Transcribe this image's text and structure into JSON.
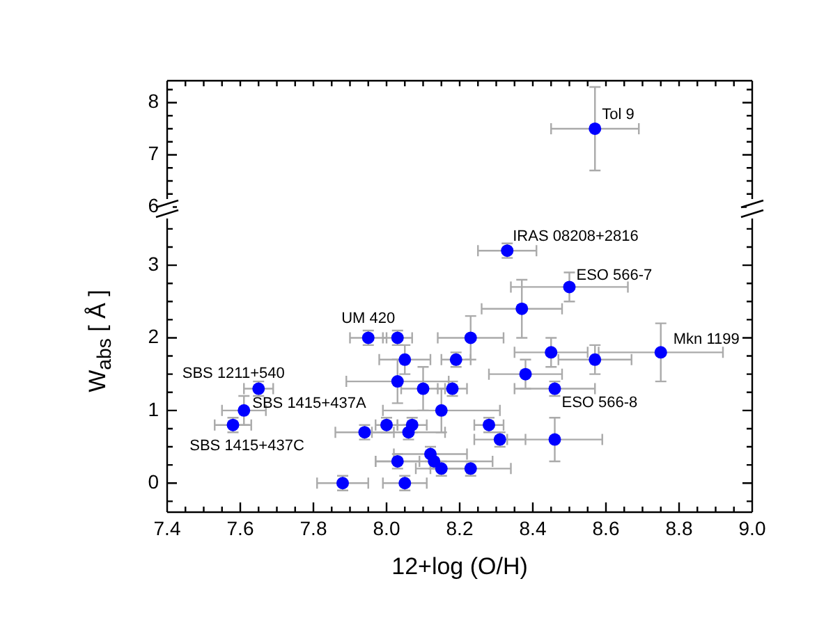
{
  "chart_data": [
    {
      "type": "scatter",
      "xlim": [
        7.4,
        9.0
      ],
      "ylim": [
        5.95,
        8.42
      ],
      "tick_labels": "y",
      "grid": false,
      "legend": false,
      "marker": "circle",
      "xticks": [
        {
          "value": 7.4,
          "label": null
        },
        {
          "value": 7.45,
          "label": null
        },
        {
          "value": 7.5,
          "label": null
        },
        {
          "value": 7.55,
          "label": null
        },
        {
          "value": 7.6,
          "label": null
        },
        {
          "value": 7.65,
          "label": null
        },
        {
          "value": 7.7,
          "label": null
        },
        {
          "value": 7.75,
          "label": null
        },
        {
          "value": 7.8,
          "label": null
        },
        {
          "value": 7.85,
          "label": null
        },
        {
          "value": 7.9,
          "label": null
        },
        {
          "value": 7.95,
          "label": null
        },
        {
          "value": 8.0,
          "label": null
        },
        {
          "value": 8.05,
          "label": null
        },
        {
          "value": 8.1,
          "label": null
        },
        {
          "value": 8.15,
          "label": null
        },
        {
          "value": 8.2,
          "label": null
        },
        {
          "value": 8.25,
          "label": null
        },
        {
          "value": 8.3,
          "label": null
        },
        {
          "value": 8.35,
          "label": null
        },
        {
          "value": 8.4,
          "label": null
        },
        {
          "value": 8.45,
          "label": null
        },
        {
          "value": 8.5,
          "label": null
        },
        {
          "value": 8.55,
          "label": null
        },
        {
          "value": 8.6,
          "label": null
        },
        {
          "value": 8.65,
          "label": null
        },
        {
          "value": 8.7,
          "label": null
        },
        {
          "value": 8.75,
          "label": null
        },
        {
          "value": 8.8,
          "label": null
        },
        {
          "value": 8.85,
          "label": null
        },
        {
          "value": 8.9,
          "label": null
        },
        {
          "value": 8.95,
          "label": null
        },
        {
          "value": 9.0,
          "label": null
        }
      ],
      "yticks": [
        6,
        {
          "value": 6.25,
          "label": null
        },
        {
          "value": 6.5,
          "label": null
        },
        {
          "value": 6.75,
          "label": null
        },
        7,
        {
          "value": 7.25,
          "label": null
        },
        {
          "value": 7.5,
          "label": null
        },
        {
          "value": 7.75,
          "label": null
        },
        8,
        {
          "value": 8.25,
          "label": null
        }
      ],
      "series": [
        {
          "color": "#0000ff",
          "x": [
            8.57
          ],
          "values": [
            7.5
          ],
          "xerrors": [
            0.12
          ],
          "errors": [
            0.8
          ]
        }
      ],
      "annotations": [
        {
          "text": "Tol 9",
          "x": 8.57,
          "y": 7.5
        }
      ]
    },
    {
      "type": "scatter",
      "xlim": [
        7.4,
        9.0
      ],
      "ylim": [
        -0.4,
        3.75
      ],
      "xlabel": "12+log (O/H)",
      "ylabel": "W$_{abs}$ [ Å ]",
      "grid": false,
      "legend": false,
      "marker": "circle",
      "xticks": [
        7.4,
        {
          "value": 7.45,
          "label": null
        },
        {
          "value": 7.5,
          "label": null
        },
        {
          "value": 7.55,
          "label": null
        },
        7.6,
        {
          "value": 7.65,
          "label": null
        },
        {
          "value": 7.7,
          "label": null
        },
        {
          "value": 7.75,
          "label": null
        },
        7.8,
        {
          "value": 7.85,
          "label": null
        },
        {
          "value": 7.9,
          "label": null
        },
        {
          "value": 7.95,
          "label": null
        },
        {
          "value": 8.0,
          "label": "8.0"
        },
        {
          "value": 8.05,
          "label": null
        },
        {
          "value": 8.1,
          "label": null
        },
        {
          "value": 8.15,
          "label": null
        },
        8.2,
        {
          "value": 8.25,
          "label": null
        },
        {
          "value": 8.3,
          "label": null
        },
        {
          "value": 8.35,
          "label": null
        },
        8.4,
        {
          "value": 8.45,
          "label": null
        },
        {
          "value": 8.5,
          "label": null
        },
        {
          "value": 8.55,
          "label": null
        },
        8.6,
        {
          "value": 8.65,
          "label": null
        },
        {
          "value": 8.7,
          "label": null
        },
        {
          "value": 8.75,
          "label": null
        },
        8.8,
        {
          "value": 8.85,
          "label": null
        },
        {
          "value": 8.9,
          "label": null
        },
        {
          "value": 8.95,
          "label": null
        },
        {
          "value": 9.0,
          "label": "9.0"
        }
      ],
      "yticks": [
        {
          "value": -0.25,
          "label": null
        },
        0,
        {
          "value": 0.25,
          "label": null
        },
        {
          "value": 0.5,
          "label": null
        },
        {
          "value": 0.75,
          "label": null
        },
        1,
        {
          "value": 1.25,
          "label": null
        },
        {
          "value": 1.5,
          "label": null
        },
        {
          "value": 1.75,
          "label": null
        },
        2,
        {
          "value": 2.25,
          "label": null
        },
        {
          "value": 2.5,
          "label": null
        },
        {
          "value": 2.75,
          "label": null
        },
        3,
        {
          "value": 3.25,
          "label": null
        },
        {
          "value": 3.5,
          "label": null
        }
      ],
      "series": [
        {
          "color": "#0000ff",
          "x": [
            7.58,
            7.61,
            7.65,
            7.88,
            7.94,
            7.95,
            8.0,
            8.03,
            8.03,
            8.03,
            8.05,
            8.05,
            8.06,
            8.07,
            8.1,
            8.12,
            8.13,
            8.15,
            8.15,
            8.18,
            8.19,
            8.23,
            8.23,
            8.28,
            8.31,
            8.33,
            8.37,
            8.38,
            8.45,
            8.46,
            8.46,
            8.5,
            8.57,
            8.75
          ],
          "values": [
            0.8,
            1.0,
            1.3,
            0,
            0.7,
            2.0,
            0.8,
            2.0,
            1.4,
            0.3,
            1.7,
            0,
            0.7,
            0.8,
            1.3,
            0.4,
            0.3,
            1.0,
            0.2,
            1.3,
            1.7,
            2.0,
            0.2,
            0.8,
            0.6,
            3.2,
            2.4,
            1.5,
            1.8,
            1.3,
            0.6,
            2.7,
            1.7,
            1.8
          ],
          "xerrors": [
            0.05,
            0.06,
            0.04,
            0.07,
            0.08,
            0.05,
            0.03,
            0.04,
            0.14,
            0.06,
            0.07,
            0.06,
            0.1,
            0.04,
            0.06,
            0.1,
            0.16,
            0.16,
            0.07,
            0.04,
            0.04,
            0.09,
            0.11,
            0.04,
            0.07,
            0.08,
            0.11,
            0.1,
            0.1,
            0.11,
            0.13,
            0.16,
            0.1,
            0.17
          ],
          "errors": [
            0.1,
            0.2,
            0.1,
            0.1,
            0.1,
            0.1,
            0.1,
            0.1,
            0.3,
            0.1,
            0.2,
            0.1,
            0.1,
            0.1,
            0.3,
            0.1,
            0.1,
            0.3,
            0.1,
            0.1,
            0.1,
            0.3,
            0.1,
            0.1,
            0.1,
            0.1,
            0.4,
            0.2,
            0.2,
            0.1,
            0.3,
            0.2,
            0.2,
            0.4
          ]
        }
      ],
      "annotations": [
        {
          "text": "IRAS 08208+2816",
          "x": 8.33,
          "y": 3.2
        },
        {
          "text": "ESO 566-7",
          "x": 8.5,
          "y": 2.7
        },
        {
          "text": "UM 420",
          "x": 7.95,
          "y": 2.0
        },
        {
          "text": "Mkn 1199",
          "x": 8.75,
          "y": 1.8
        },
        {
          "text": "ESO 566-8",
          "x": 8.46,
          "y": 1.3
        },
        {
          "text": "SBS 1211+540",
          "x": 7.65,
          "y": 1.3
        },
        {
          "text": "SBS 1415+437A",
          "x": 7.61,
          "y": 1.0
        },
        {
          "text": "SBS 1415+437C",
          "x": 7.58,
          "y": 0.8
        }
      ]
    }
  ]
}
